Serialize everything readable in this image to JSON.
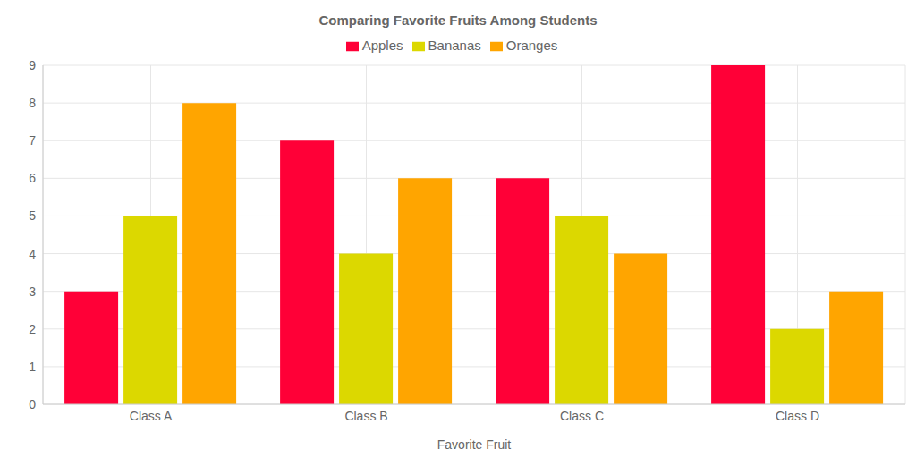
{
  "chart_data": {
    "type": "bar",
    "title": "Comparing Favorite Fruits Among Students",
    "x_label": "Favorite Fruit",
    "categories": [
      "Class A",
      "Class B",
      "Class C",
      "Class D"
    ],
    "series": [
      {
        "name": "Apples",
        "color": "#ff0037",
        "values": [
          3,
          7,
          6,
          9
        ]
      },
      {
        "name": "Bananas",
        "color": "#dcd800",
        "values": [
          5,
          4,
          5,
          2
        ]
      },
      {
        "name": "Oranges",
        "color": "#ffa500",
        "values": [
          8,
          6,
          4,
          3
        ]
      }
    ],
    "ylim": [
      0,
      9
    ],
    "yticks": [
      0,
      1,
      2,
      3,
      4,
      5,
      6,
      7,
      8,
      9
    ],
    "grid": true,
    "legend": "top"
  }
}
